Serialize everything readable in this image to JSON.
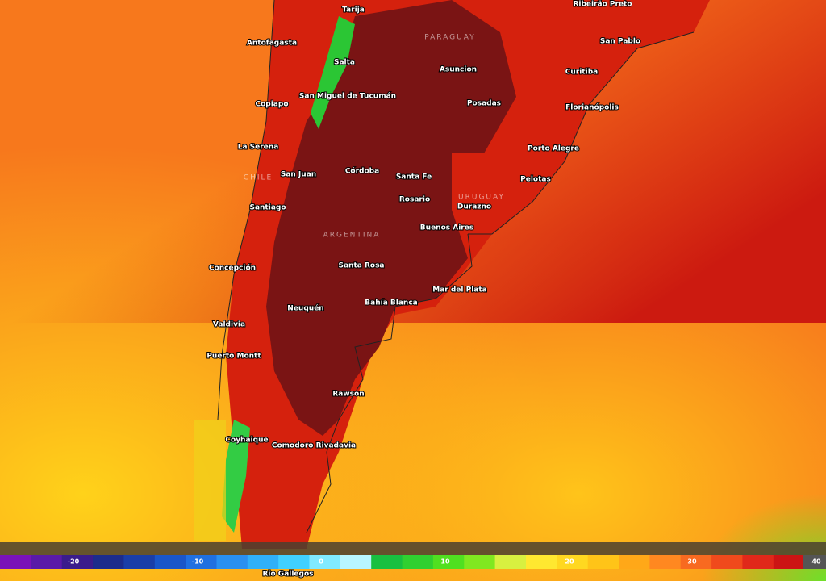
{
  "map": {
    "cities": [
      "Tarija",
      "Ribeirão Preto",
      "Antofagasta",
      "Salta",
      "Asuncion",
      "San Pablo",
      "Curitiba",
      "Copiapo",
      "San Miguel de Tucumán",
      "Posadas",
      "Florianópolis",
      "La Serena",
      "Porto Alegre",
      "Córdoba",
      "San Juan",
      "Santa Fe",
      "Pelotas",
      "Rosario",
      "Durazno",
      "Santiago",
      "Buenos Aires",
      "Concepción",
      "Santa Rosa",
      "Mar del Plata",
      "Neuquén",
      "Bahía Blanca",
      "Valdivia",
      "Puerto Montt",
      "Rawson",
      "Coyhaique",
      "Comodoro Rivadavia",
      "Rio Gallegos"
    ],
    "countries": [
      "PARAGUAY",
      "CHILE",
      "URUGUAY",
      "ARGENTINA"
    ],
    "legend": {
      "labels": [
        "-20",
        "-10",
        "0",
        "10",
        "20",
        "30",
        "40"
      ]
    }
  }
}
